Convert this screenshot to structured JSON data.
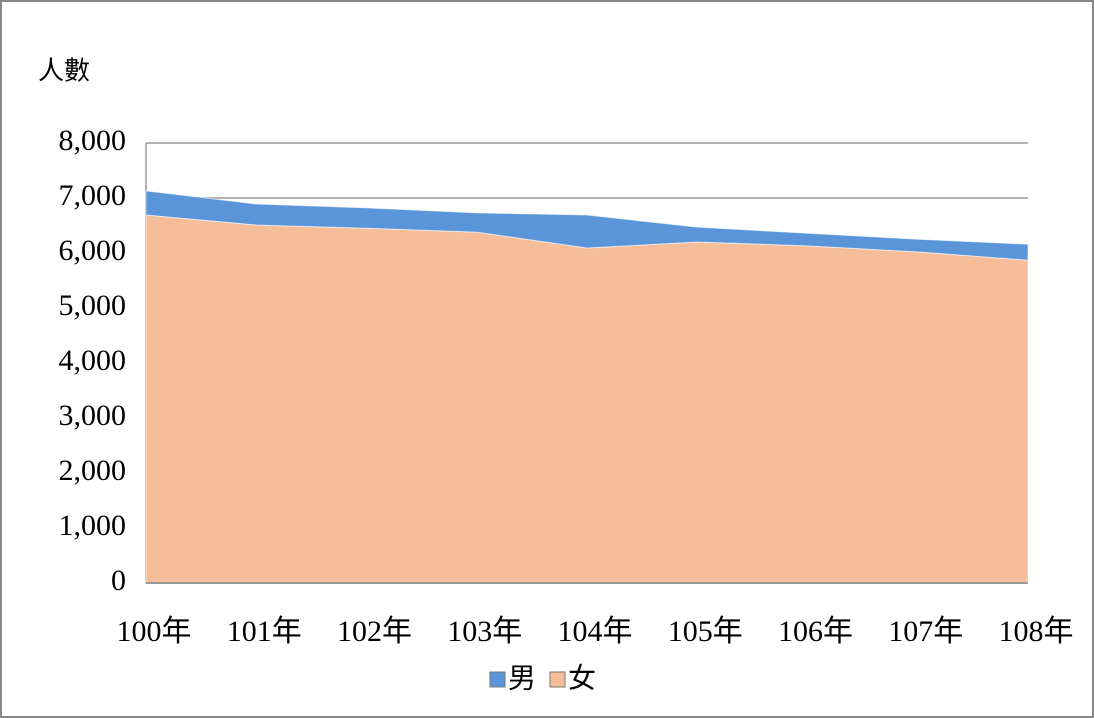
{
  "chart_data": {
    "type": "stacked-area",
    "y_axis_label": "人數",
    "categories": [
      "100年",
      "101年",
      "102年",
      "103年",
      "104年",
      "105年",
      "106年",
      "107年",
      "108年"
    ],
    "series": [
      {
        "name": "男",
        "color": "#5a94d9",
        "values": [
          440,
          380,
          370,
          350,
          600,
          270,
          230,
          230,
          290
        ]
      },
      {
        "name": "女",
        "color": "#f5bd98",
        "values": [
          6690,
          6510,
          6450,
          6380,
          6090,
          6200,
          6130,
          6020,
          5870
        ]
      }
    ],
    "ylim": [
      0,
      8000
    ],
    "yticks": [
      0,
      {
        "value": 1000,
        "label": "1,000"
      },
      {
        "value": 2000,
        "label": "2,000"
      },
      {
        "value": 3000,
        "label": "3,000"
      },
      {
        "value": 4000,
        "label": "4,000"
      },
      {
        "value": 5000,
        "label": "5,000"
      },
      {
        "value": 6000,
        "label": "6,000"
      },
      {
        "value": 7000,
        "label": "7,000"
      },
      {
        "value": 8000,
        "label": "8,000"
      }
    ],
    "grid": true,
    "legend": "bottom"
  }
}
